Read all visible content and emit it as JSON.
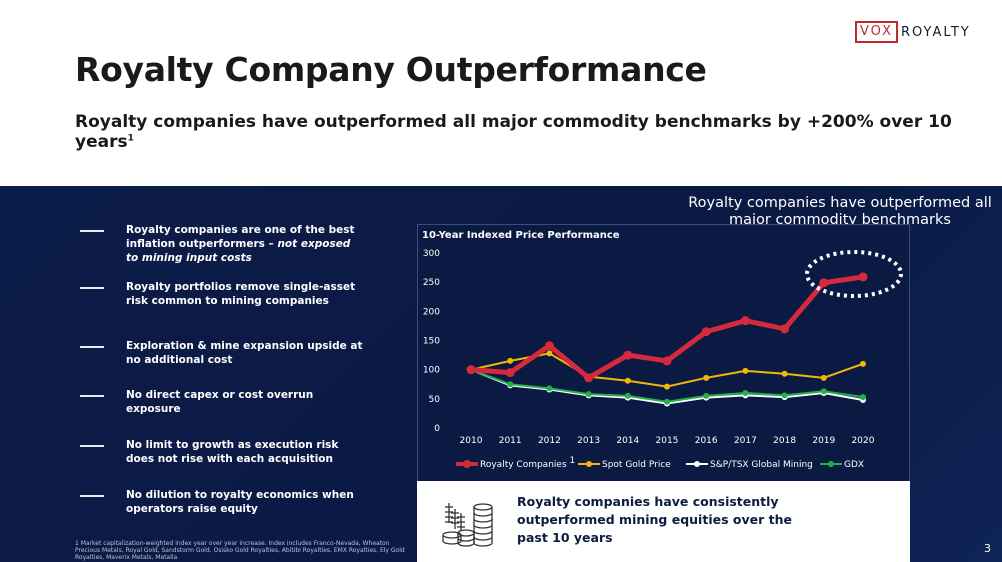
{
  "logo": {
    "left": "VOX",
    "right": "ROYALTY"
  },
  "title": "Royalty Company Outperformance",
  "subtitle": {
    "text": "Royalty companies have outperformed all major commodity benchmarks by +200% over 10 years",
    "sup": "1"
  },
  "bullets": [
    {
      "plain": "Royalty companies are one of the best inflation outperformers – ",
      "italic": "not exposed to mining input costs"
    },
    {
      "plain": "Royalty portfolios remove single-asset risk common to mining companies",
      "italic": ""
    },
    {
      "plain": "Exploration & mine expansion upside at no additional cost",
      "italic": ""
    },
    {
      "plain": "No direct capex or cost overrun exposure",
      "italic": ""
    },
    {
      "plain": "No limit to growth as execution risk does not rise with each acquisition",
      "italic": ""
    },
    {
      "plain": "No dilution to royalty economics when operators raise equity",
      "italic": ""
    }
  ],
  "footnote": "1 Market capitalization-weighted index year over year increase. Index includes Franco-Nevada, Wheaton Precious Metals, Royal Gold, Sandstorm Gold, Osisko Gold Royalties, Abitibi Royalties, EMX Royalties, Ely Gold Royalties, Maverix Metals, Metalla",
  "callout": "Royalty companies have outperformed all major commodity benchmarks",
  "info_box": {
    "text": "Royalty companies have consistently outperformed mining equities over the past 10 years"
  },
  "page_number": "3",
  "colors": {
    "royalty": "#d42a3c",
    "gold": "#f2b705",
    "sptsx": "#ffffff",
    "gdx": "#22b04b",
    "panel": "#0c1c48"
  },
  "chart_data": {
    "type": "line",
    "title": "10-Year Indexed Price Performance",
    "categories": [
      "2010",
      "2011",
      "2012",
      "2013",
      "2014",
      "2015",
      "2016",
      "2017",
      "2018",
      "2019",
      "2020"
    ],
    "ylim": [
      0,
      300
    ],
    "yticks": [
      0,
      50,
      100,
      150,
      200,
      250,
      300
    ],
    "legend_position": "bottom",
    "series": [
      {
        "name": "S&P/TSX Global Mining",
        "color": "#ffffff",
        "values": [
          100,
          73,
          66,
          56,
          52,
          42,
          52,
          56,
          53,
          60,
          48
        ]
      },
      {
        "name": "GDX",
        "color": "#22b04b",
        "values": [
          100,
          75,
          68,
          58,
          55,
          45,
          55,
          60,
          56,
          63,
          53
        ]
      },
      {
        "name": "Spot Gold Price",
        "color": "#f2b705",
        "values": [
          100,
          115,
          128,
          88,
          81,
          71,
          86,
          98,
          93,
          86,
          110
        ]
      },
      {
        "name": "Royalty Companies",
        "sup": "1",
        "color": "#d42a3c",
        "values": [
          100,
          95,
          141,
          86,
          125,
          115,
          165,
          184,
          170,
          249,
          259
        ]
      }
    ],
    "legend": [
      {
        "label": "Royalty Companies",
        "sup": "1",
        "color": "#d42a3c"
      },
      {
        "label": "Spot Gold Price",
        "sup": "",
        "color": "#f2b705"
      },
      {
        "label": "S&P/TSX Global Mining",
        "sup": "",
        "color": "#ffffff"
      },
      {
        "label": "GDX",
        "sup": "",
        "color": "#22b04b"
      }
    ]
  }
}
